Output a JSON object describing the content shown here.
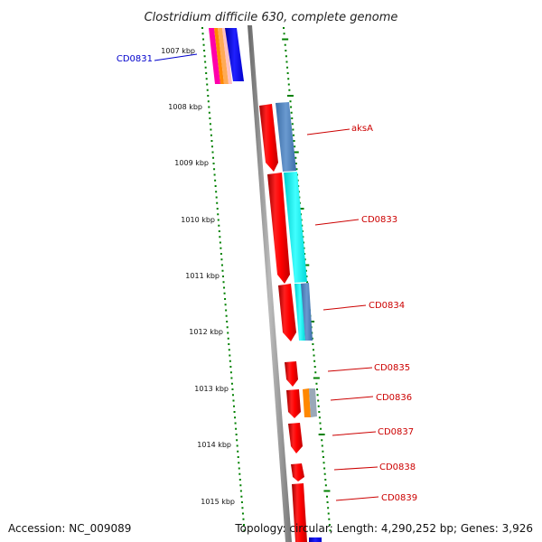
{
  "title": "Clostridium difficile 630, complete genome",
  "footer": {
    "accession": "Accession: NC_009089",
    "info": "Topology: circular; Length: 4,290,252 bp; Genes: 3,926"
  },
  "colors": {
    "cds": "#ff0000",
    "gene_label": "#cc0000",
    "locus_label": "#0000cc",
    "tick": "#008000",
    "backbone": "#888888"
  },
  "kbp_ticks": [
    "1007 kbp",
    "1008 kbp",
    "1009 kbp",
    "1010 kbp",
    "1011 kbp",
    "1012 kbp",
    "1013 kbp",
    "1014 kbp",
    "1015 kbp"
  ],
  "genes": [
    {
      "name": "CD0831",
      "color": "#0000cc"
    },
    {
      "name": "aksA",
      "color": "#cc0000"
    },
    {
      "name": "CD0833",
      "color": "#cc0000"
    },
    {
      "name": "CD0834",
      "color": "#cc0000"
    },
    {
      "name": "CD0835",
      "color": "#cc0000"
    },
    {
      "name": "CD0836",
      "color": "#cc0000"
    },
    {
      "name": "CD0837",
      "color": "#cc0000"
    },
    {
      "name": "CD0838",
      "color": "#cc0000"
    },
    {
      "name": "CD0839",
      "color": "#cc0000"
    }
  ]
}
